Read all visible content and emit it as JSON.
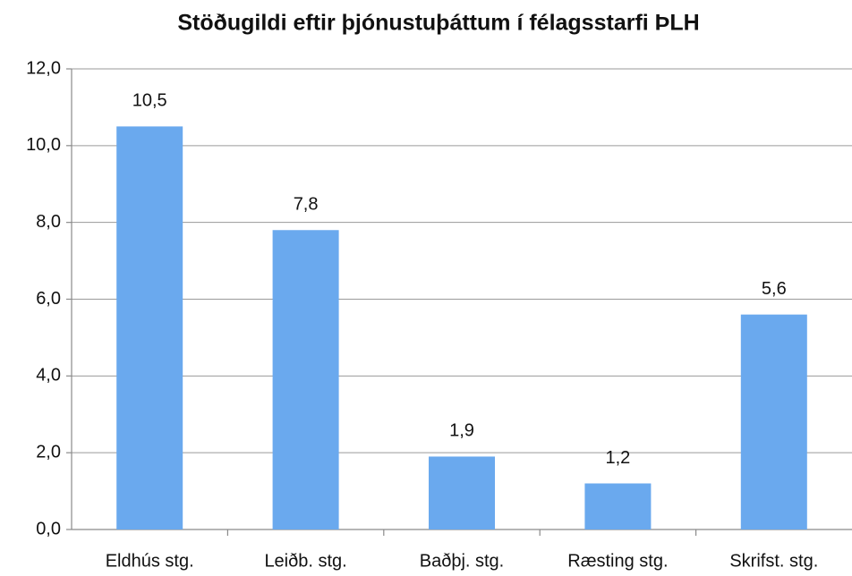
{
  "chart_data": {
    "type": "bar",
    "title": "Stöðugildi eftir þjónustuþáttum í félagsstarfi ÞLH",
    "categories": [
      "Eldhús stg.",
      "Leiðb. stg.",
      "Baðþj. stg.",
      "Ræsting stg.",
      "Skrifst. stg."
    ],
    "values": [
      10.5,
      7.8,
      1.9,
      1.2,
      5.6
    ],
    "value_labels": [
      "10,5",
      "7,8",
      "1,9",
      "1,2",
      "5,6"
    ],
    "color": "#6aa9ee",
    "ylim": [
      0,
      12
    ],
    "yticks": [
      {
        "value": 0,
        "label": "0,0"
      },
      {
        "value": 2,
        "label": "2,0"
      },
      {
        "value": 4,
        "label": "4,0"
      },
      {
        "value": 6,
        "label": "6,0"
      },
      {
        "value": 8,
        "label": "8,0"
      },
      {
        "value": 10,
        "label": "10,0"
      },
      {
        "value": 12,
        "label": "12,0"
      }
    ],
    "grid": true
  }
}
